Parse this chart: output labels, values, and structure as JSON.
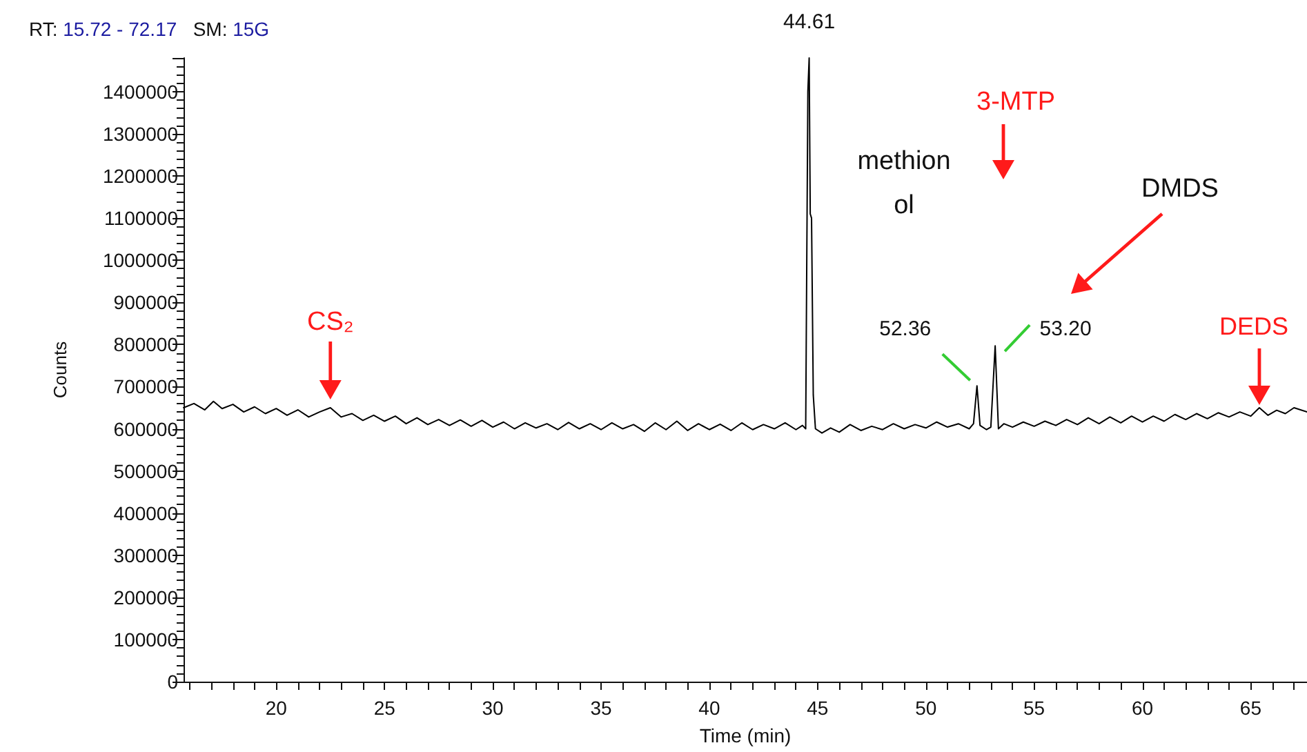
{
  "chart_data": {
    "type": "line",
    "title": "RT: 15.72 - 72.17   SM: 15G",
    "xlabel": "Time (min)",
    "ylabel": "Counts",
    "x": [
      15.72,
      16.2,
      16.7,
      17.1,
      17.5,
      18,
      18.5,
      19,
      19.5,
      20,
      20.5,
      21,
      21.5,
      22,
      22.5,
      23,
      23.5,
      24,
      24.5,
      25,
      25.5,
      26,
      26.5,
      27,
      27.5,
      28,
      28.5,
      29,
      29.5,
      30,
      30.5,
      31,
      31.5,
      32,
      32.5,
      33,
      33.5,
      34,
      34.5,
      35,
      35.5,
      36,
      36.5,
      37,
      37.5,
      38,
      38.5,
      39,
      39.5,
      40,
      40.5,
      41,
      41.5,
      42,
      42.5,
      43,
      43.5,
      44,
      44.3,
      44.45,
      44.55,
      44.61,
      44.66,
      44.72,
      44.8,
      44.9,
      45.2,
      45.6,
      46,
      46.5,
      47,
      47.5,
      48,
      48.5,
      49,
      49.5,
      50,
      50.5,
      51,
      51.5,
      52,
      52.2,
      52.36,
      52.5,
      52.8,
      53.0,
      53.2,
      53.35,
      53.6,
      54,
      54.5,
      55,
      55.5,
      56,
      56.5,
      57,
      57.5,
      58,
      58.5,
      59,
      59.5,
      60,
      60.5,
      61,
      61.5,
      62,
      62.5,
      63,
      63.5,
      64,
      64.5,
      65,
      65.4,
      65.8,
      66.2,
      66.6,
      67,
      67.6
    ],
    "series": [
      {
        "color": "#000000",
        "values": [
          650000,
          660000,
          645000,
          665000,
          648000,
          658000,
          640000,
          652000,
          636000,
          648000,
          632000,
          645000,
          628000,
          640000,
          650000,
          628000,
          636000,
          620000,
          632000,
          618000,
          630000,
          612000,
          626000,
          610000,
          622000,
          608000,
          621000,
          606000,
          620000,
          604000,
          616000,
          600000,
          614000,
          602000,
          612000,
          598000,
          615000,
          600000,
          612000,
          598000,
          614000,
          600000,
          610000,
          594000,
          614000,
          598000,
          618000,
          596000,
          612000,
          598000,
          611000,
          596000,
          614000,
          598000,
          610000,
          600000,
          614000,
          598000,
          608000,
          600000,
          1400000,
          1480000,
          1110000,
          1100000,
          680000,
          600000,
          590000,
          602000,
          592000,
          610000,
          596000,
          606000,
          598000,
          612000,
          600000,
          610000,
          602000,
          616000,
          604000,
          612000,
          600000,
          612000,
          702000,
          608000,
          598000,
          604000,
          797000,
          600000,
          612000,
          604000,
          616000,
          606000,
          618000,
          608000,
          622000,
          610000,
          626000,
          612000,
          628000,
          614000,
          630000,
          616000,
          630000,
          618000,
          634000,
          622000,
          636000,
          624000,
          638000,
          628000,
          640000,
          630000,
          650000,
          632000,
          644000,
          636000,
          650000,
          640000
        ]
      }
    ],
    "xlim": [
      15.72,
      67.6
    ],
    "xticks": [
      {
        "value": 16,
        "label": null
      },
      {
        "value": 17,
        "label": null
      },
      {
        "value": 18,
        "label": null
      },
      {
        "value": 19,
        "label": null
      },
      20,
      {
        "value": 21,
        "label": null
      },
      {
        "value": 22,
        "label": null
      },
      {
        "value": 23,
        "label": null
      },
      {
        "value": 24,
        "label": null
      },
      25,
      {
        "value": 26,
        "label": null
      },
      {
        "value": 27,
        "label": null
      },
      {
        "value": 28,
        "label": null
      },
      {
        "value": 29,
        "label": null
      },
      30,
      {
        "value": 31,
        "label": null
      },
      {
        "value": 32,
        "label": null
      },
      {
        "value": 33,
        "label": null
      },
      {
        "value": 34,
        "label": null
      },
      35,
      {
        "value": 36,
        "label": null
      },
      {
        "value": 37,
        "label": null
      },
      {
        "value": 38,
        "label": null
      },
      {
        "value": 39,
        "label": null
      },
      40,
      {
        "value": 41,
        "label": null
      },
      {
        "value": 42,
        "label": null
      },
      {
        "value": 43,
        "label": null
      },
      {
        "value": 44,
        "label": null
      },
      45,
      {
        "value": 46,
        "label": null
      },
      {
        "value": 47,
        "label": null
      },
      {
        "value": 48,
        "label": null
      },
      {
        "value": 49,
        "label": null
      },
      50,
      {
        "value": 51,
        "label": null
      },
      {
        "value": 52,
        "label": null
      },
      {
        "value": 53,
        "label": null
      },
      {
        "value": 54,
        "label": null
      },
      55,
      {
        "value": 56,
        "label": null
      },
      {
        "value": 57,
        "label": null
      },
      {
        "value": 58,
        "label": null
      },
      {
        "value": 59,
        "label": null
      },
      60,
      {
        "value": 61,
        "label": null
      },
      {
        "value": 62,
        "label": null
      },
      {
        "value": 63,
        "label": null
      },
      {
        "value": 64,
        "label": null
      },
      65,
      {
        "value": 66,
        "label": null
      },
      {
        "value": 67,
        "label": null
      }
    ],
    "ylim": [
      0,
      1480000
    ],
    "yticks": [
      0,
      100000,
      200000,
      300000,
      400000,
      500000,
      600000,
      700000,
      800000,
      900000,
      1000000,
      1100000,
      1200000,
      1300000,
      1400000
    ],
    "grid": false,
    "marker": "none",
    "line_style": "solid",
    "annotations": [
      {
        "text": "44.61",
        "x": 44.61,
        "y": 1480000
      },
      {
        "text": "52.36",
        "x": 52.36,
        "y": 702000
      },
      {
        "text": "53.20",
        "x": 53.2,
        "y": 797000
      },
      {
        "text": "CS₂",
        "x": 22.5,
        "y": 650000
      },
      {
        "text": "DEDS",
        "x": 65.4,
        "y": 650000
      },
      "3-MTP",
      "DMDS",
      "methionol"
    ]
  }
}
